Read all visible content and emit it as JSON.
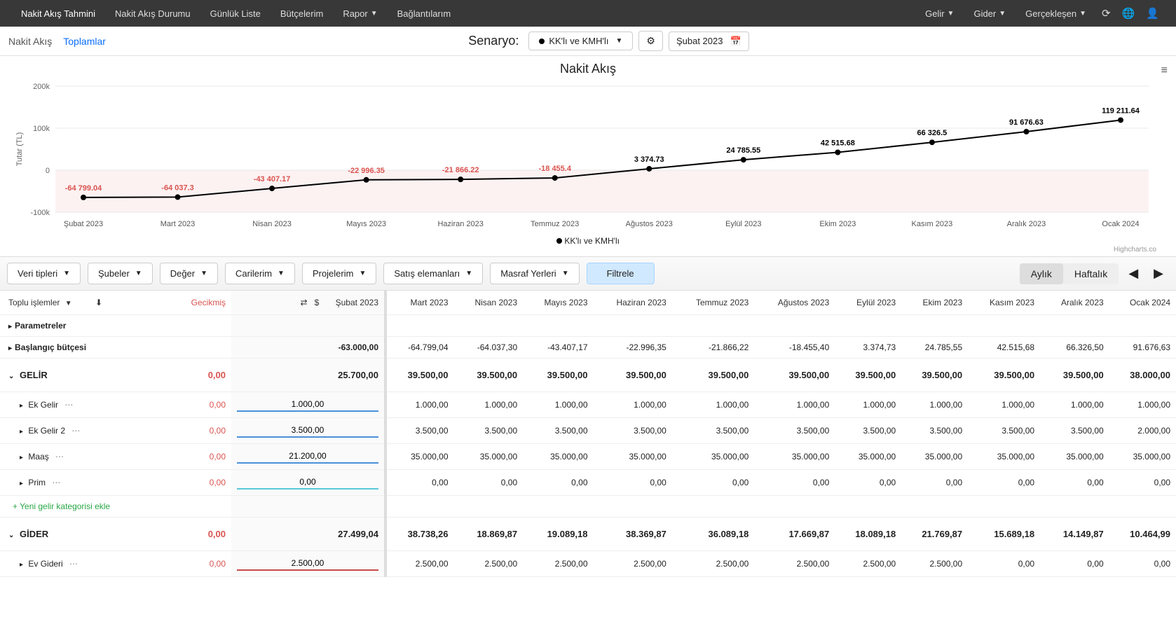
{
  "topnav": {
    "items": [
      "Nakit Akış Tahmini",
      "Nakit Akış Durumu",
      "Günlük Liste",
      "Bütçelerim",
      "Rapor",
      "Bağlantılarım"
    ],
    "right_items": [
      "Gelir",
      "Gider",
      "Gerçekleşen"
    ]
  },
  "subnav": {
    "tab1": "Nakit Akış",
    "tab2": "Toplamlar",
    "scenario_label": "Senaryo:",
    "scenario_value": "KK'lı ve KMH'lı",
    "date_value": "Şubat 2023"
  },
  "chart": {
    "title": "Nakit Akış",
    "y_label": "Tutar (TL)",
    "y_ticks": [
      "-100k",
      "0",
      "100k",
      "200k"
    ],
    "x_labels": [
      "Şubat 2023",
      "Mart 2023",
      "Nisan 2023",
      "Mayıs 2023",
      "Haziran 2023",
      "Temmuz 2023",
      "Ağustos 2023",
      "Eylül 2023",
      "Ekim 2023",
      "Kasım 2023",
      "Aralık 2023",
      "Ocak 2024"
    ],
    "values": [
      -64799.04,
      -64037.3,
      -43407.17,
      -22996.35,
      -21866.22,
      -18455.4,
      3374.73,
      24785.55,
      42515.68,
      66326.5,
      91676.63,
      119211.64
    ],
    "labels": [
      "-64 799.04",
      "-64 037.3",
      "-43 407.17",
      "-22 996.35",
      "-21 866.22",
      "-18 455.4",
      "3 374.73",
      "24 785.55",
      "42 515.68",
      "66 326.5",
      "91 676.63",
      "119 211.64"
    ],
    "legend": "KK'lı ve KMH'lı",
    "credit": "Highcharts.co",
    "ymin": -100000,
    "ymax": 200000,
    "neg_color": "#d9534f",
    "pos_color": "#000000",
    "neg_fill": "#fdf2f2",
    "line_color": "#000000"
  },
  "filters": {
    "items": [
      "Veri tipleri",
      "Şubeler",
      "Değer",
      "Carilerim",
      "Projelerim",
      "Satış elemanları",
      "Masraf Yerleri"
    ],
    "filtrele": "Filtrele",
    "period_monthly": "Aylık",
    "period_weekly": "Haftalık"
  },
  "table": {
    "toplu": "Toplu işlemler",
    "gecikmis_header": "Gecikmiş",
    "months": [
      "Şubat 2023",
      "Mart 2023",
      "Nisan 2023",
      "Mayıs 2023",
      "Haziran 2023",
      "Temmuz 2023",
      "Ağustos 2023",
      "Eylül 2023",
      "Ekim 2023",
      "Kasım 2023",
      "Aralık 2023",
      "Ocak 2024"
    ],
    "rows": {
      "parametreler": "Parametreler",
      "baslangic": {
        "label": "Başlangıç bütçesi",
        "editable": "-63.000,00",
        "vals": [
          "-64.799,04",
          "-64.037,30",
          "-43.407,17",
          "-22.996,35",
          "-21.866,22",
          "-18.455,40",
          "3.374,73",
          "24.785,55",
          "42.515,68",
          "66.326,50",
          "91.676,63"
        ]
      },
      "gelir": {
        "label": "GELİR",
        "gecikmis": "0,00",
        "editable": "25.700,00",
        "vals": [
          "39.500,00",
          "39.500,00",
          "39.500,00",
          "39.500,00",
          "39.500,00",
          "39.500,00",
          "39.500,00",
          "39.500,00",
          "39.500,00",
          "39.500,00",
          "38.000,00"
        ]
      },
      "ek_gelir": {
        "label": "Ek Gelir",
        "gecikmis": "0,00",
        "editable": "1.000,00",
        "vals": [
          "1.000,00",
          "1.000,00",
          "1.000,00",
          "1.000,00",
          "1.000,00",
          "1.000,00",
          "1.000,00",
          "1.000,00",
          "1.000,00",
          "1.000,00",
          "1.000,00"
        ]
      },
      "ek_gelir2": {
        "label": "Ek Gelir 2",
        "gecikmis": "0,00",
        "editable": "3.500,00",
        "vals": [
          "3.500,00",
          "3.500,00",
          "3.500,00",
          "3.500,00",
          "3.500,00",
          "3.500,00",
          "3.500,00",
          "3.500,00",
          "3.500,00",
          "3.500,00",
          "2.000,00"
        ]
      },
      "maas": {
        "label": "Maaş",
        "gecikmis": "0,00",
        "editable": "21.200,00",
        "vals": [
          "35.000,00",
          "35.000,00",
          "35.000,00",
          "35.000,00",
          "35.000,00",
          "35.000,00",
          "35.000,00",
          "35.000,00",
          "35.000,00",
          "35.000,00",
          "35.000,00"
        ]
      },
      "prim": {
        "label": "Prim",
        "gecikmis": "0,00",
        "editable": "0,00",
        "vals": [
          "0,00",
          "0,00",
          "0,00",
          "0,00",
          "0,00",
          "0,00",
          "0,00",
          "0,00",
          "0,00",
          "0,00",
          "0,00"
        ]
      },
      "add_gelir": "Yeni gelir kategorisi ekle",
      "gider": {
        "label": "GİDER",
        "gecikmis": "0,00",
        "editable": "27.499,04",
        "vals": [
          "38.738,26",
          "18.869,87",
          "19.089,18",
          "38.369,87",
          "36.089,18",
          "17.669,87",
          "18.089,18",
          "21.769,87",
          "15.689,18",
          "14.149,87",
          "10.464,99"
        ]
      },
      "ev_gideri": {
        "label": "Ev Gideri",
        "gecikmis": "0,00",
        "editable": "2.500,00",
        "vals": [
          "2.500,00",
          "2.500,00",
          "2.500,00",
          "2.500,00",
          "2.500,00",
          "2.500,00",
          "2.500,00",
          "2.500,00",
          "0,00",
          "0,00",
          "0,00"
        ]
      }
    }
  }
}
